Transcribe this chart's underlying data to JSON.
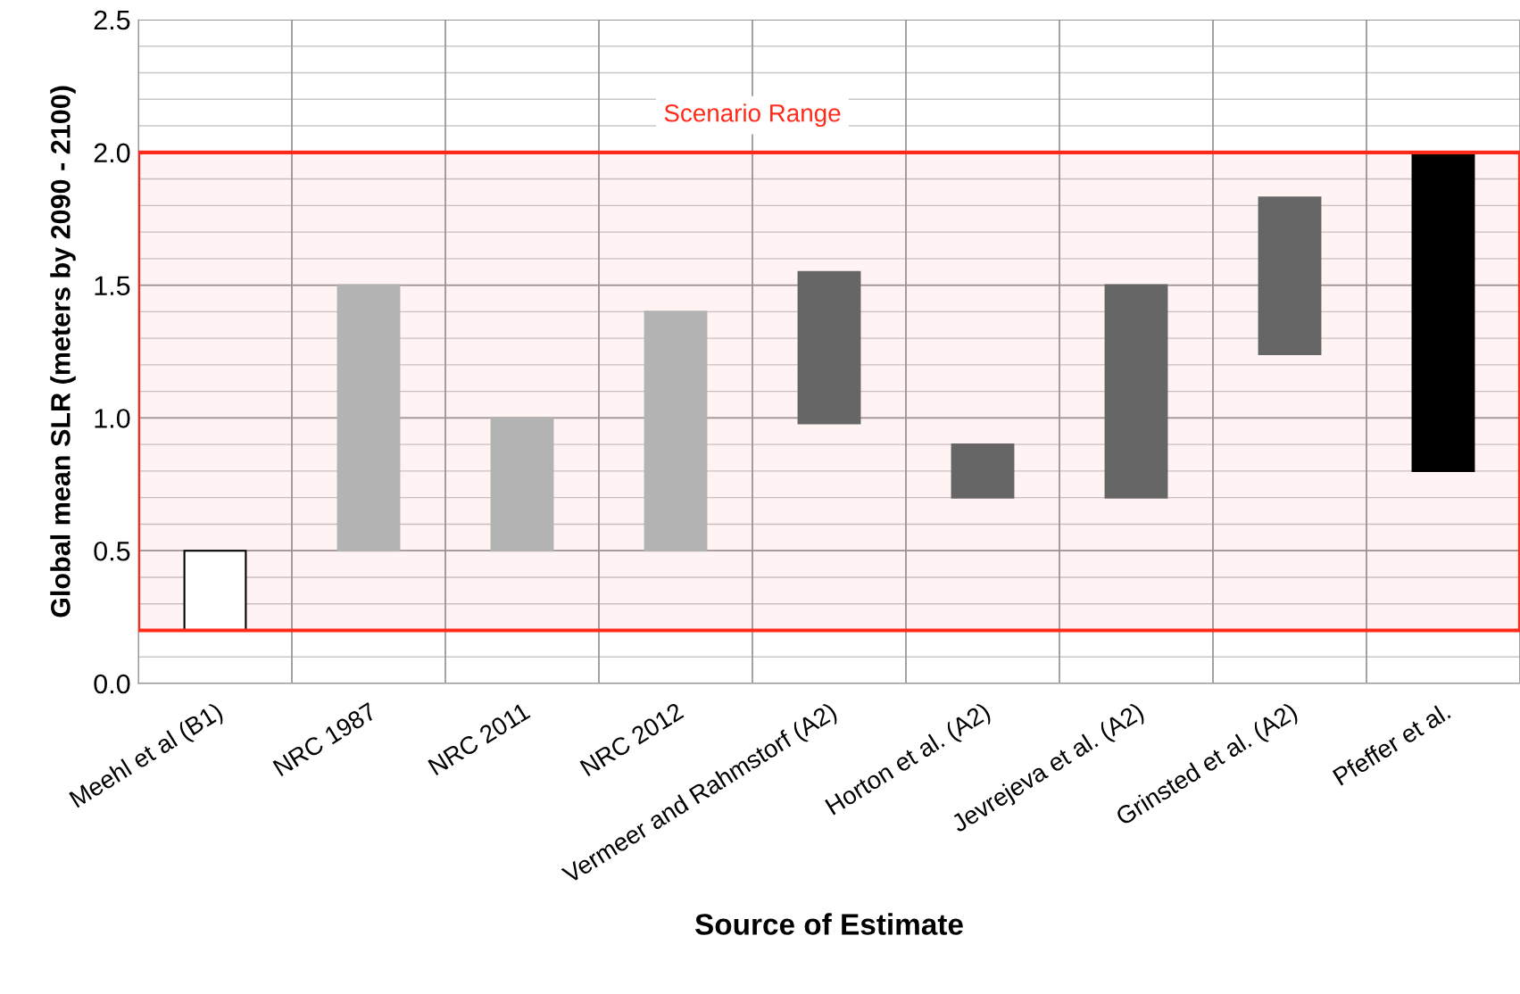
{
  "chart_data": {
    "type": "bar",
    "xlabel": "Source of Estimate",
    "ylabel": "Global mean SLR (meters by 2090 - 2100)",
    "categories": [
      "Meehl et al (B1)",
      "NRC 1987",
      "NRC 2011",
      "NRC 2012",
      "Vermeer and Rahmstorf (A2)",
      "Horton et al. (A2)",
      "Jevrejeva et al. (A2)",
      "Grinsted et al. (A2)",
      "Pfeffer et al."
    ],
    "base": [
      0.2,
      0.5,
      0.5,
      0.5,
      0.98,
      0.7,
      0.7,
      1.24,
      0.8
    ],
    "values": [
      0.3,
      1.0,
      0.5,
      0.9,
      0.57,
      0.2,
      0.8,
      0.59,
      1.2
    ],
    "colors": [
      "#ffffff",
      "#b3b3b3",
      "#b3b3b3",
      "#b3b3b3",
      "#666666",
      "#666666",
      "#666666",
      "#666666",
      "#000000"
    ],
    "ylim": [
      0,
      2.5
    ],
    "yticks": [
      {
        "value": 0,
        "label": "0.0"
      },
      {
        "value": 0.5,
        "label": "0.5"
      },
      {
        "value": 1,
        "label": "1.0"
      },
      {
        "value": 1.5,
        "label": "1.5"
      },
      {
        "value": 2,
        "label": "2.0"
      },
      {
        "value": 2.5,
        "label": "2.5"
      }
    ],
    "grid": true,
    "bands": [
      {
        "axis": "y",
        "from": 0.2,
        "to": 2.0,
        "label": "Scenario Range",
        "color": "#ff2a1a"
      }
    ]
  }
}
